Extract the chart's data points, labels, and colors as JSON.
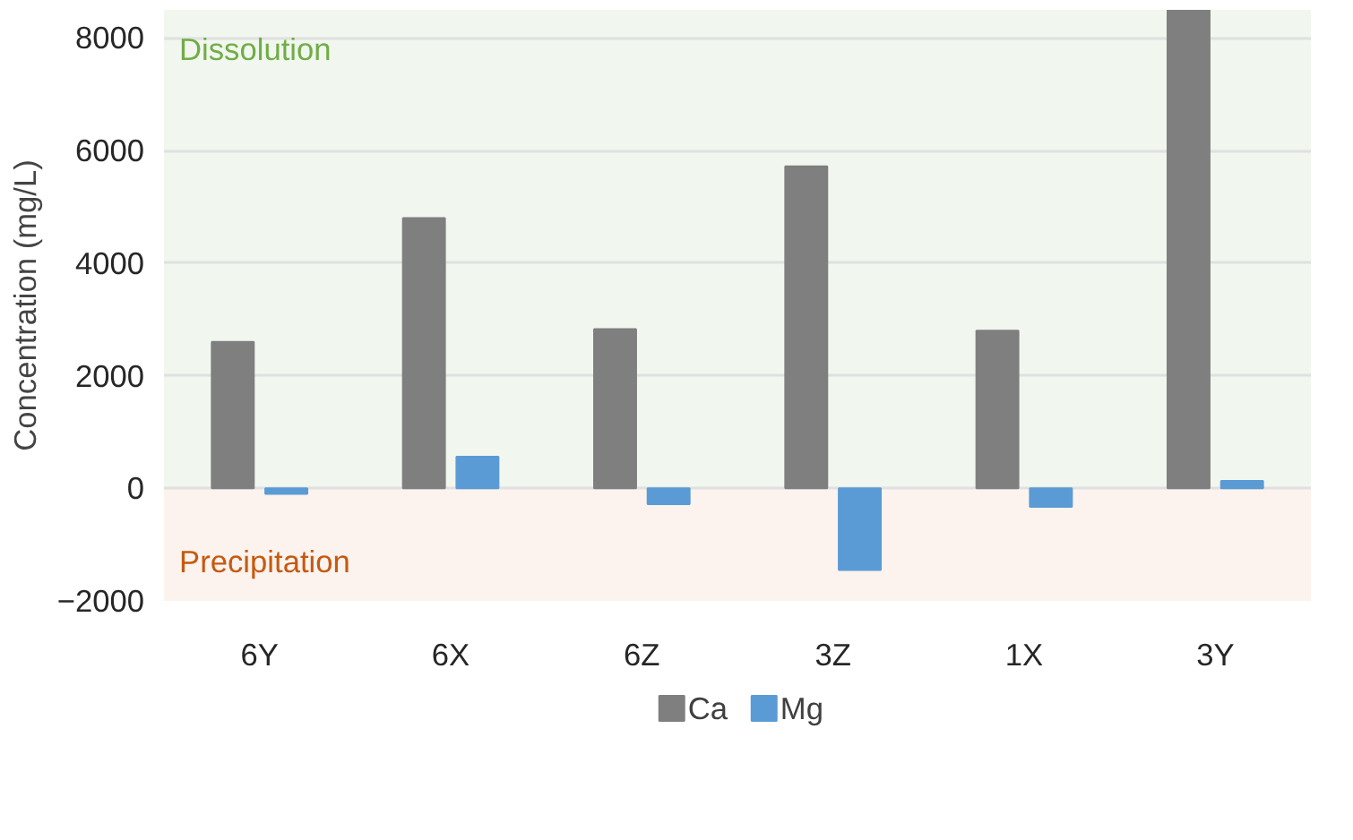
{
  "chart_data": {
    "type": "bar",
    "ylabel": "Concentration (mg/L)",
    "categories": [
      "6Y",
      "6X",
      "6Z",
      "3Z",
      "1X",
      "3Y"
    ],
    "series": [
      {
        "name": "Ca",
        "color": "#7f7f7f",
        "values": [
          2600,
          4800,
          2830,
          5720,
          2800,
          8500
        ]
      },
      {
        "name": "Mg",
        "color": "#5b9bd5",
        "values": [
          -100,
          560,
          -280,
          -1450,
          -330,
          130
        ]
      }
    ],
    "ylim": [
      -2000,
      8500
    ],
    "yticks": [
      -2000,
      0,
      2000,
      4000,
      6000,
      8000
    ],
    "bands": [
      {
        "axis": "y",
        "from": 0,
        "to": 8500,
        "label": "Dissolution",
        "color": "#f1f7ee"
      },
      {
        "axis": "y",
        "from": -2000,
        "to": 0,
        "label": "Precipitation",
        "color": "#fcf3ee"
      }
    ],
    "grid": "y",
    "legend": "bottom"
  }
}
